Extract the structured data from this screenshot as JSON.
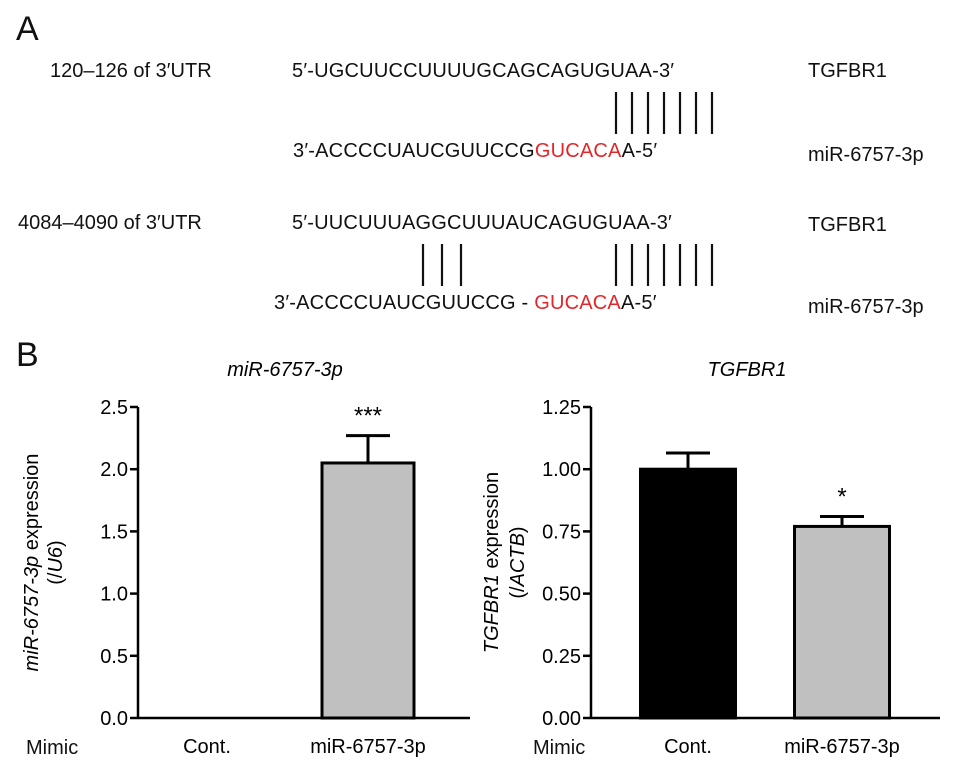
{
  "panel_a": {
    "letter": "A",
    "sites": [
      {
        "position_label": "120–126 of 3′UTR",
        "target_seq": "5′-UGCUUCCUUUUGCAGCAGUGUAA-3′",
        "target_name": "TGFBR1",
        "mirna_prefix": "3′-ACCCCUAUCGUUCCG",
        "mirna_seed": "GUCACA",
        "mirna_suffix": "A-5′",
        "mirna_name": "miR-6757-3p"
      },
      {
        "position_label": "4084–4090 of 3′UTR",
        "target_seq": "5′-UUCUUUAGGCUUUAUCAGUGUAA-3′",
        "target_name": "TGFBR1",
        "mirna_prefix": "3′-ACCCCUAUCGUUCCG - ",
        "mirna_seed": "GUCACA",
        "mirna_suffix": "A-5′",
        "mirna_name": "miR-6757-3p"
      }
    ]
  },
  "panel_b": {
    "letter": "B",
    "mimic_label": "Mimic"
  },
  "chart_data": [
    {
      "type": "bar",
      "title": "miR-6757-3p",
      "ylabel_line1": "miR-6757-3p expression",
      "ylabel_line2": "(/U6)",
      "categories": [
        "Cont.",
        "miR-6757-3p"
      ],
      "values": [
        0.0,
        2.05
      ],
      "errors": [
        0.0,
        0.22
      ],
      "significance": [
        "",
        "***"
      ],
      "bar_colors": [
        "#000000",
        "#c0c0c0"
      ],
      "ylim": [
        0,
        2.5
      ],
      "yticks": [
        "0.0",
        "0.5",
        "1.0",
        "1.5",
        "2.0",
        "2.5"
      ]
    },
    {
      "type": "bar",
      "title": "TGFBR1",
      "ylabel_line1": "TGFBR1 expression",
      "ylabel_line2": "(/ACTB)",
      "categories": [
        "Cont.",
        "miR-6757-3p"
      ],
      "values": [
        1.0,
        0.77
      ],
      "errors": [
        0.065,
        0.04
      ],
      "significance": [
        "",
        "*"
      ],
      "bar_colors": [
        "#000000",
        "#c0c0c0"
      ],
      "ylim": [
        0,
        1.25
      ],
      "yticks": [
        "0.00",
        "0.25",
        "0.50",
        "0.75",
        "1.00",
        "1.25"
      ]
    }
  ]
}
